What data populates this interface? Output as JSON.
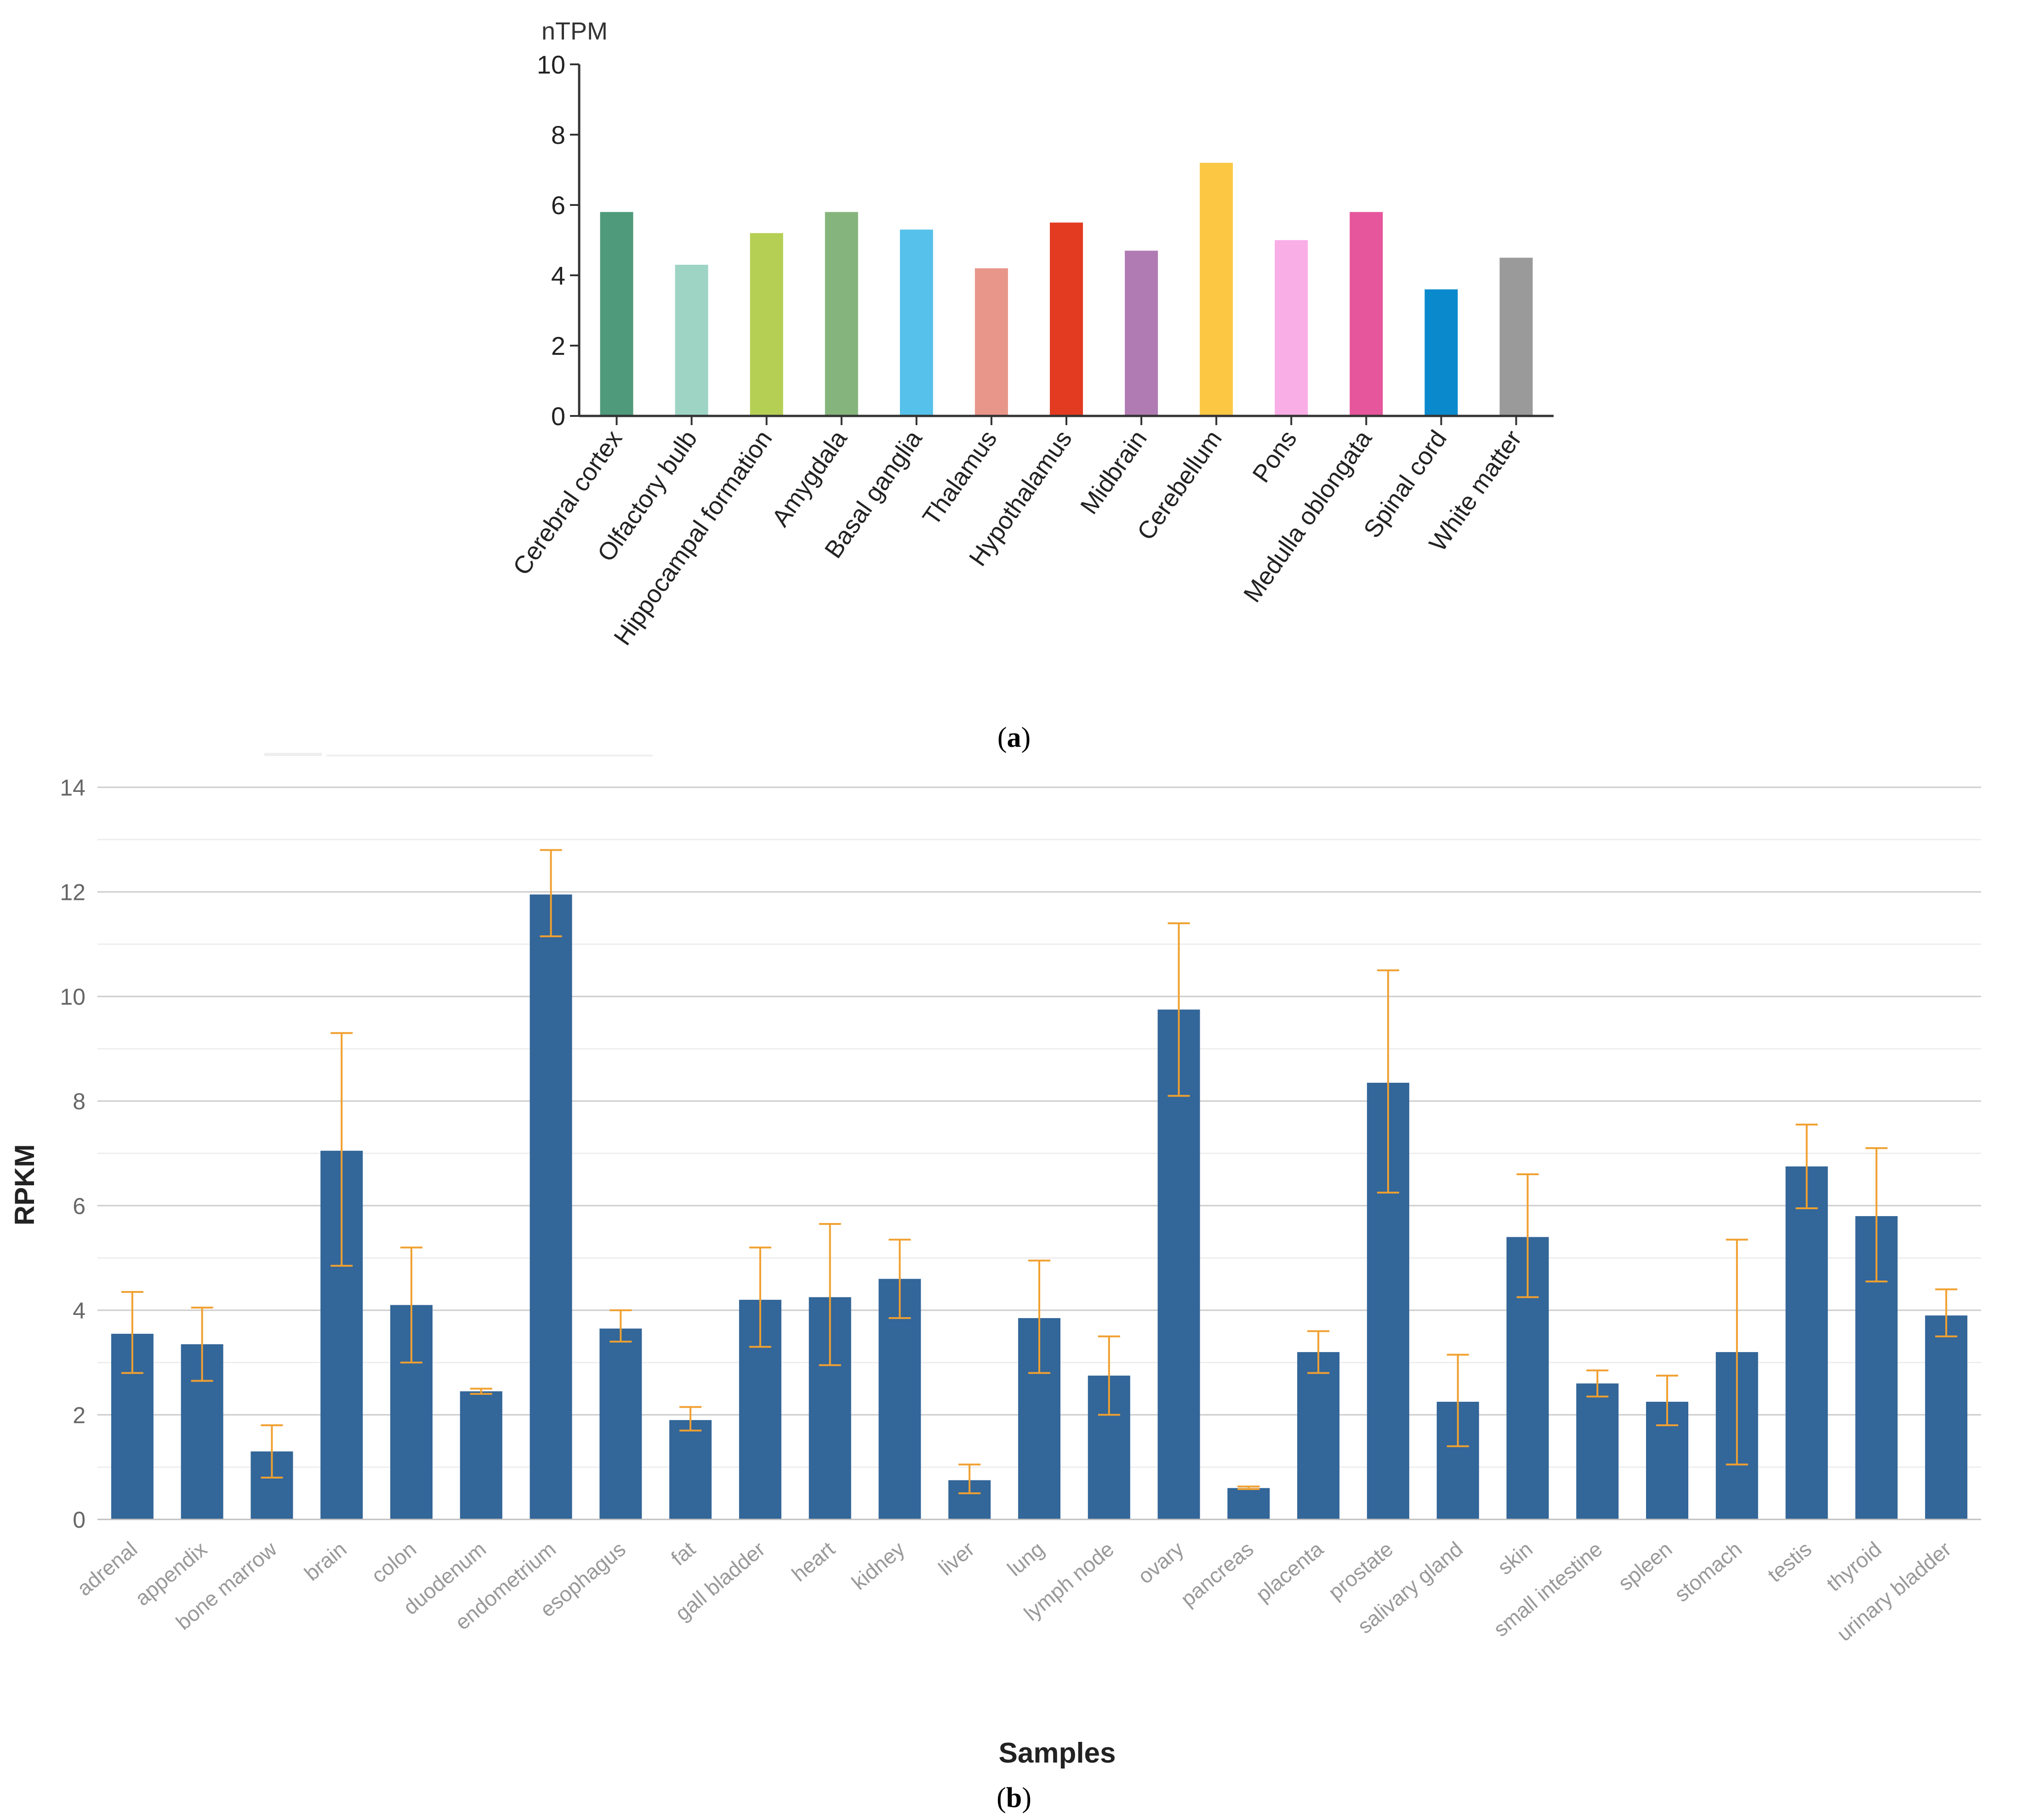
{
  "panel_a_label": "a",
  "panel_b_label": "b",
  "chart_data": [
    {
      "type": "bar",
      "panel": "a",
      "title": "",
      "ylabel": "nTPM",
      "xlabel": "",
      "ylim": [
        0,
        10
      ],
      "yticks": [
        0,
        2,
        4,
        6,
        8,
        10
      ],
      "grid": false,
      "categories": [
        "Cerebral cortex",
        "Olfactory bulb",
        "Hippocampal formation",
        "Amygdala",
        "Basal ganglia",
        "Thalamus",
        "Hypothalamus",
        "Midbrain",
        "Cerebellum",
        "Pons",
        "Medulla oblongata",
        "Spinal cord",
        "White matter"
      ],
      "values": [
        5.8,
        4.3,
        5.2,
        5.8,
        5.3,
        4.2,
        5.5,
        4.7,
        7.2,
        5.0,
        5.8,
        3.6,
        4.5
      ],
      "colors": [
        "#4e9a7a",
        "#9ed4c4",
        "#b5cf55",
        "#85b57c",
        "#56c1ea",
        "#e9968a",
        "#e33b22",
        "#b07bb2",
        "#fcc844",
        "#f9aee6",
        "#e6569c",
        "#0a8acd",
        "#9a9a9a"
      ]
    },
    {
      "type": "bar",
      "panel": "b",
      "title": "",
      "ylabel": "RPKM",
      "xlabel": "Samples",
      "ylim": [
        0,
        14
      ],
      "yticks": [
        0,
        2,
        4,
        6,
        8,
        10,
        12,
        14
      ],
      "grid": true,
      "bar_color": "#336699",
      "error_color": "#f0a030",
      "categories": [
        "adrenal",
        "appendix",
        "bone marrow",
        "brain",
        "colon",
        "duodenum",
        "endometrium",
        "esophagus",
        "fat",
        "gall bladder",
        "heart",
        "kidney",
        "liver",
        "lung",
        "lymph node",
        "ovary",
        "pancreas",
        "placenta",
        "prostate",
        "salivary gland",
        "skin",
        "small intestine",
        "spleen",
        "stomach",
        "testis",
        "thyroid",
        "urinary bladder"
      ],
      "values": [
        3.55,
        3.35,
        1.3,
        7.05,
        4.1,
        2.45,
        11.95,
        3.65,
        1.9,
        4.2,
        4.25,
        4.6,
        0.75,
        3.85,
        2.75,
        9.75,
        0.6,
        3.2,
        8.35,
        2.25,
        5.4,
        2.6,
        2.25,
        3.2,
        6.75,
        5.8,
        3.9
      ],
      "error_low": [
        2.8,
        2.65,
        0.8,
        4.85,
        3.0,
        2.4,
        11.15,
        3.4,
        1.7,
        3.3,
        2.95,
        3.85,
        0.5,
        2.8,
        2.0,
        8.1,
        0.58,
        2.8,
        6.25,
        1.4,
        4.25,
        2.35,
        1.8,
        1.05,
        5.95,
        4.55,
        3.5
      ],
      "error_high": [
        4.35,
        4.05,
        1.8,
        9.3,
        5.2,
        2.5,
        12.8,
        4.0,
        2.15,
        5.2,
        5.65,
        5.35,
        1.05,
        4.95,
        3.5,
        11.4,
        0.63,
        3.6,
        10.5,
        3.15,
        6.6,
        2.85,
        2.75,
        5.35,
        7.55,
        7.1,
        4.4
      ]
    }
  ]
}
